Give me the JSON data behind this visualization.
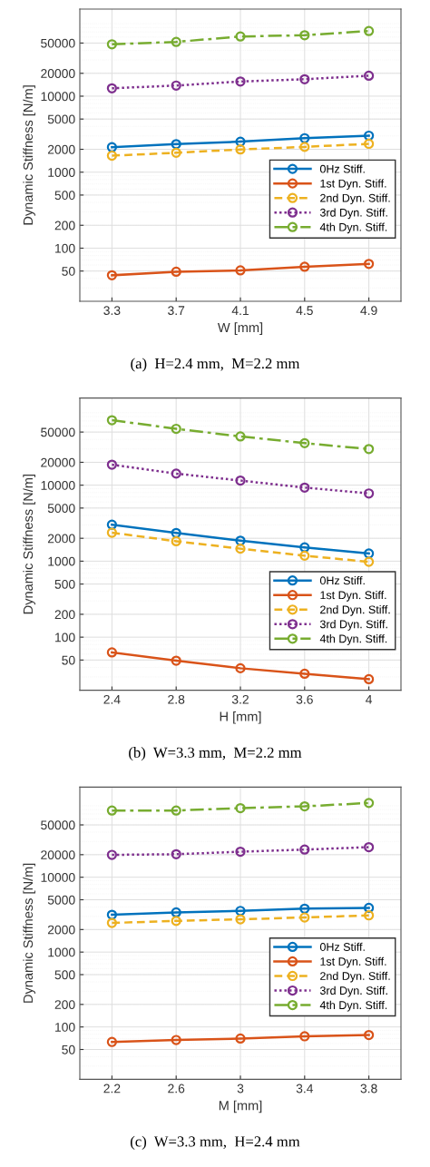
{
  "chart_data": [
    {
      "type": "line",
      "x": [
        3.3,
        3.7,
        4.1,
        4.5,
        4.9
      ],
      "xlim": [
        3.1,
        5.1
      ],
      "xticks": [
        3.3,
        3.7,
        4.1,
        4.5,
        4.9
      ],
      "xlabel": "W [mm]",
      "ylabel": "Dynamic Stiffness [N/m]",
      "log": "y",
      "ylim": [
        20,
        140000
      ],
      "yticks": [
        50,
        100,
        200,
        500,
        1000,
        2000,
        5000,
        10000,
        20000,
        50000
      ],
      "grid": true,
      "legend": "right",
      "marker": "circle",
      "annotations": [
        "(a)  H=2.4 mm,  M=2.2 mm"
      ],
      "series": [
        {
          "name": "0Hz Stiff.",
          "color": "#0072bd",
          "line_style": "solid",
          "values": [
            2130,
            2340,
            2520,
            2800,
            3020
          ]
        },
        {
          "name": "1st Dyn. Stiff.",
          "color": "#d95319",
          "line_style": "solid",
          "values": [
            44,
            49,
            51,
            57,
            62
          ]
        },
        {
          "name": "2nd Dyn. Stiff.",
          "color": "#edb120",
          "line_style": "dashed",
          "values": [
            1650,
            1800,
            1990,
            2150,
            2360
          ]
        },
        {
          "name": "3rd Dyn. Stiff.",
          "color": "#7e2f8e",
          "line_style": "dotted",
          "values": [
            12700,
            13800,
            15600,
            16700,
            18600
          ]
        },
        {
          "name": "4th Dyn. Stiff.",
          "color": "#77ac30",
          "line_style": "dashdot",
          "values": [
            48200,
            51800,
            61000,
            63400,
            72000
          ]
        }
      ]
    },
    {
      "type": "line",
      "x": [
        2.4,
        2.8,
        3.2,
        3.6,
        4.0
      ],
      "xlim": [
        2.2,
        4.2
      ],
      "xticks": [
        2.4,
        2.8,
        3.2,
        3.6,
        4
      ],
      "xlabel": "H [mm]",
      "ylabel": "Dynamic Stiffness [N/m]",
      "log": "y",
      "ylim": [
        20,
        140000
      ],
      "yticks": [
        50,
        100,
        200,
        500,
        1000,
        2000,
        5000,
        10000,
        20000,
        50000
      ],
      "grid": true,
      "legend": "lower right",
      "marker": "circle",
      "annotations": [
        "(b)  W=3.3 mm,  M=2.2 mm"
      ],
      "series": [
        {
          "name": "0Hz Stiff.",
          "color": "#0072bd",
          "line_style": "solid",
          "values": [
            3020,
            2350,
            1860,
            1520,
            1260
          ]
        },
        {
          "name": "1st Dyn. Stiff.",
          "color": "#d95319",
          "line_style": "solid",
          "values": [
            63,
            49,
            39,
            33,
            28
          ]
        },
        {
          "name": "2nd Dyn. Stiff.",
          "color": "#edb120",
          "line_style": "dashed",
          "values": [
            2370,
            1830,
            1460,
            1180,
            980
          ]
        },
        {
          "name": "3rd Dyn. Stiff.",
          "color": "#7e2f8e",
          "line_style": "dotted",
          "values": [
            18600,
            14200,
            11500,
            9290,
            7780
          ]
        },
        {
          "name": "4th Dyn. Stiff.",
          "color": "#77ac30",
          "line_style": "dashdot",
          "values": [
            71600,
            55200,
            43800,
            35700,
            29900
          ]
        }
      ]
    },
    {
      "type": "line",
      "x": [
        2.2,
        2.6,
        3.0,
        3.4,
        3.8
      ],
      "xlim": [
        2.0,
        4.0
      ],
      "xticks": [
        2.2,
        2.6,
        3,
        3.4,
        3.8
      ],
      "xlabel": "M [mm]",
      "ylabel": "Dynamic Stiffness [N/m]",
      "log": "y",
      "ylim": [
        20,
        160000
      ],
      "yticks": [
        50,
        100,
        200,
        500,
        1000,
        2000,
        5000,
        10000,
        20000,
        50000
      ],
      "grid": true,
      "legend": "right",
      "marker": "circle",
      "annotations": [
        "(c)  W=3.3 mm,  H=2.4 mm"
      ],
      "series": [
        {
          "name": "0Hz Stiff.",
          "color": "#0072bd",
          "line_style": "solid",
          "values": [
            3150,
            3390,
            3550,
            3800,
            3900
          ]
        },
        {
          "name": "1st Dyn. Stiff.",
          "color": "#d95319",
          "line_style": "solid",
          "values": [
            63,
            67,
            70,
            75,
            78
          ]
        },
        {
          "name": "2nd Dyn. Stiff.",
          "color": "#edb120",
          "line_style": "dashed",
          "values": [
            2450,
            2610,
            2740,
            2900,
            3090
          ]
        },
        {
          "name": "3rd Dyn. Stiff.",
          "color": "#7e2f8e",
          "line_style": "dotted",
          "values": [
            19900,
            20300,
            21900,
            23400,
            25200
          ]
        },
        {
          "name": "4th Dyn. Stiff.",
          "color": "#77ac30",
          "line_style": "dashdot",
          "values": [
            77800,
            77800,
            83700,
            88500,
            98100
          ]
        }
      ]
    }
  ]
}
